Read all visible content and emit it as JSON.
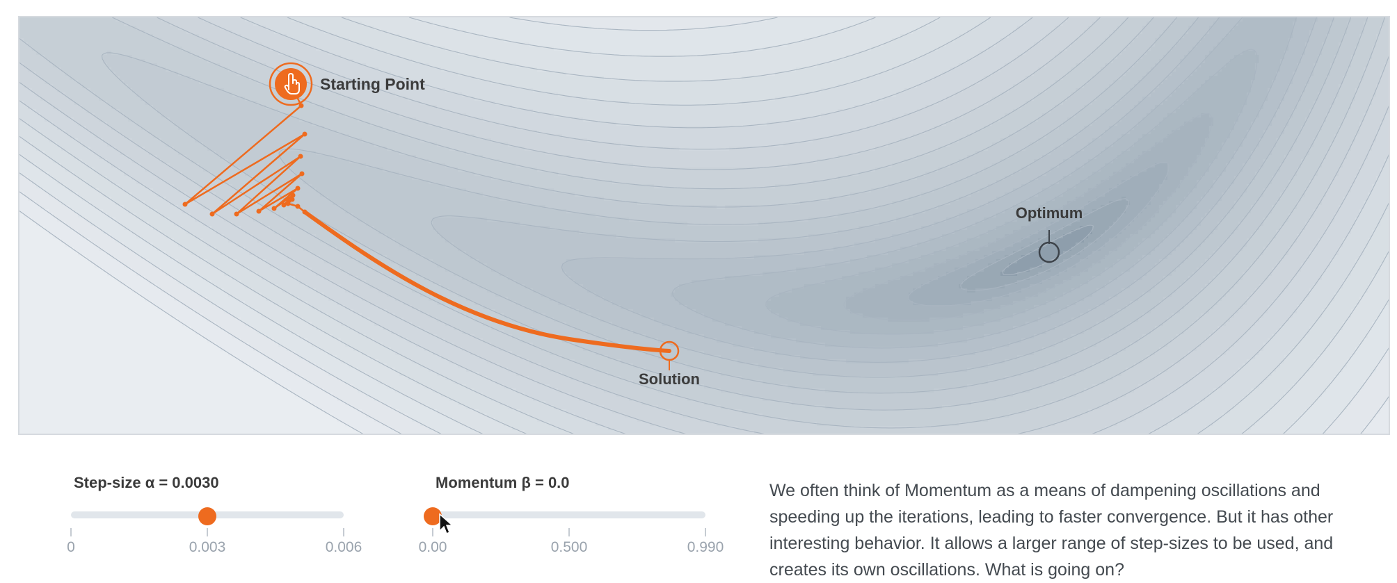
{
  "plot": {
    "starting_point_label": "Starting Point",
    "solution_label": "Solution",
    "optimum_label": "Optimum",
    "colors": {
      "accent": "#ee6b1f",
      "background": "#e9edf1",
      "contour_line": "#aab6c2",
      "marker": "#3d434a"
    }
  },
  "sliders": {
    "step_size": {
      "label": "Step-size α = 0.0030",
      "value": 0.003,
      "min": 0,
      "max": 0.006,
      "ticks": [
        "0",
        "0.003",
        "0.006"
      ]
    },
    "momentum": {
      "label": "Momentum β = 0.0",
      "value": 0.0,
      "min": 0.0,
      "max": 0.99,
      "ticks": [
        "0.00",
        "0.500",
        "0.990"
      ]
    }
  },
  "description": "We often think of Momentum as a means of dampening oscillations and speeding up the iterations, leading to faster convergence. But it has other interesting behavior. It allows a larger range of step-sizes to be used, and creates its own oscillations. What is going on?"
}
